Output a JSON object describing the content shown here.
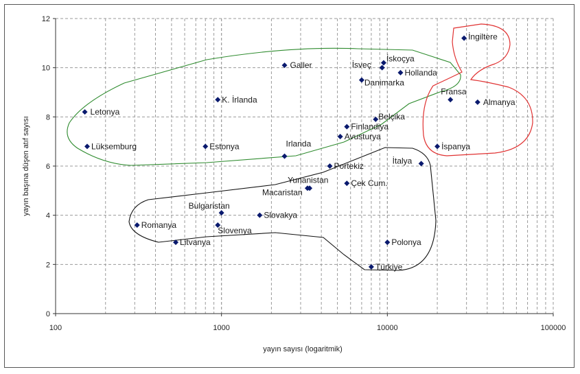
{
  "chart_data": {
    "type": "scatter",
    "xlabel": "yayın sayısı (logaritmik)",
    "ylabel": "yayın başına düşen atıf sayısı",
    "xscale": "log",
    "xlim": [
      100,
      100000
    ],
    "ylim": [
      0,
      12
    ],
    "xticks": [
      "100",
      "1000",
      "10000",
      "100000"
    ],
    "yticks": [
      "0",
      "2",
      "4",
      "6",
      "8",
      "10",
      "12"
    ],
    "grid": true,
    "points": [
      {
        "name": "İngiltere",
        "x": 29000,
        "y": 11.2
      },
      {
        "name": "İskoçya",
        "x": 9500,
        "y": 10.2
      },
      {
        "name": "İsveç",
        "x": 9300,
        "y": 10.0
      },
      {
        "name": "Hollanda",
        "x": 12000,
        "y": 9.8
      },
      {
        "name": "Galler",
        "x": 2400,
        "y": 10.1
      },
      {
        "name": "Danimarka",
        "x": 7000,
        "y": 9.5
      },
      {
        "name": "K. İrlanda",
        "x": 950,
        "y": 8.7
      },
      {
        "name": "Letonya",
        "x": 150,
        "y": 8.2
      },
      {
        "name": "Fransa",
        "x": 24000,
        "y": 8.7
      },
      {
        "name": "Almanya",
        "x": 35000,
        "y": 8.6
      },
      {
        "name": "Belçika",
        "x": 8500,
        "y": 7.9
      },
      {
        "name": "Finlandiya",
        "x": 5700,
        "y": 7.6
      },
      {
        "name": "Avusturya",
        "x": 5200,
        "y": 7.2
      },
      {
        "name": "Lüksemburg",
        "x": 155,
        "y": 6.8
      },
      {
        "name": "Estonya",
        "x": 800,
        "y": 6.8
      },
      {
        "name": "Irlanda",
        "x": 2400,
        "y": 6.4
      },
      {
        "name": "İspanya",
        "x": 20000,
        "y": 6.8
      },
      {
        "name": "İtalya",
        "x": 16000,
        "y": 6.1
      },
      {
        "name": "Portekiz",
        "x": 4500,
        "y": 6.0
      },
      {
        "name": "Yunanistan",
        "x": 3400,
        "y": 5.1
      },
      {
        "name": "Macaristan",
        "x": 3300,
        "y": 5.1
      },
      {
        "name": "Çek Cum.",
        "x": 5700,
        "y": 5.3
      },
      {
        "name": "Bulgaristan",
        "x": 1000,
        "y": 4.1
      },
      {
        "name": "Slovakya",
        "x": 1700,
        "y": 4.0
      },
      {
        "name": "Slovenya",
        "x": 950,
        "y": 3.6
      },
      {
        "name": "Romanya",
        "x": 310,
        "y": 3.6
      },
      {
        "name": "Litvanya",
        "x": 530,
        "y": 2.9
      },
      {
        "name": "Polonya",
        "x": 10000,
        "y": 2.9
      },
      {
        "name": "Türkiye",
        "x": 8000,
        "y": 1.9
      }
    ]
  }
}
